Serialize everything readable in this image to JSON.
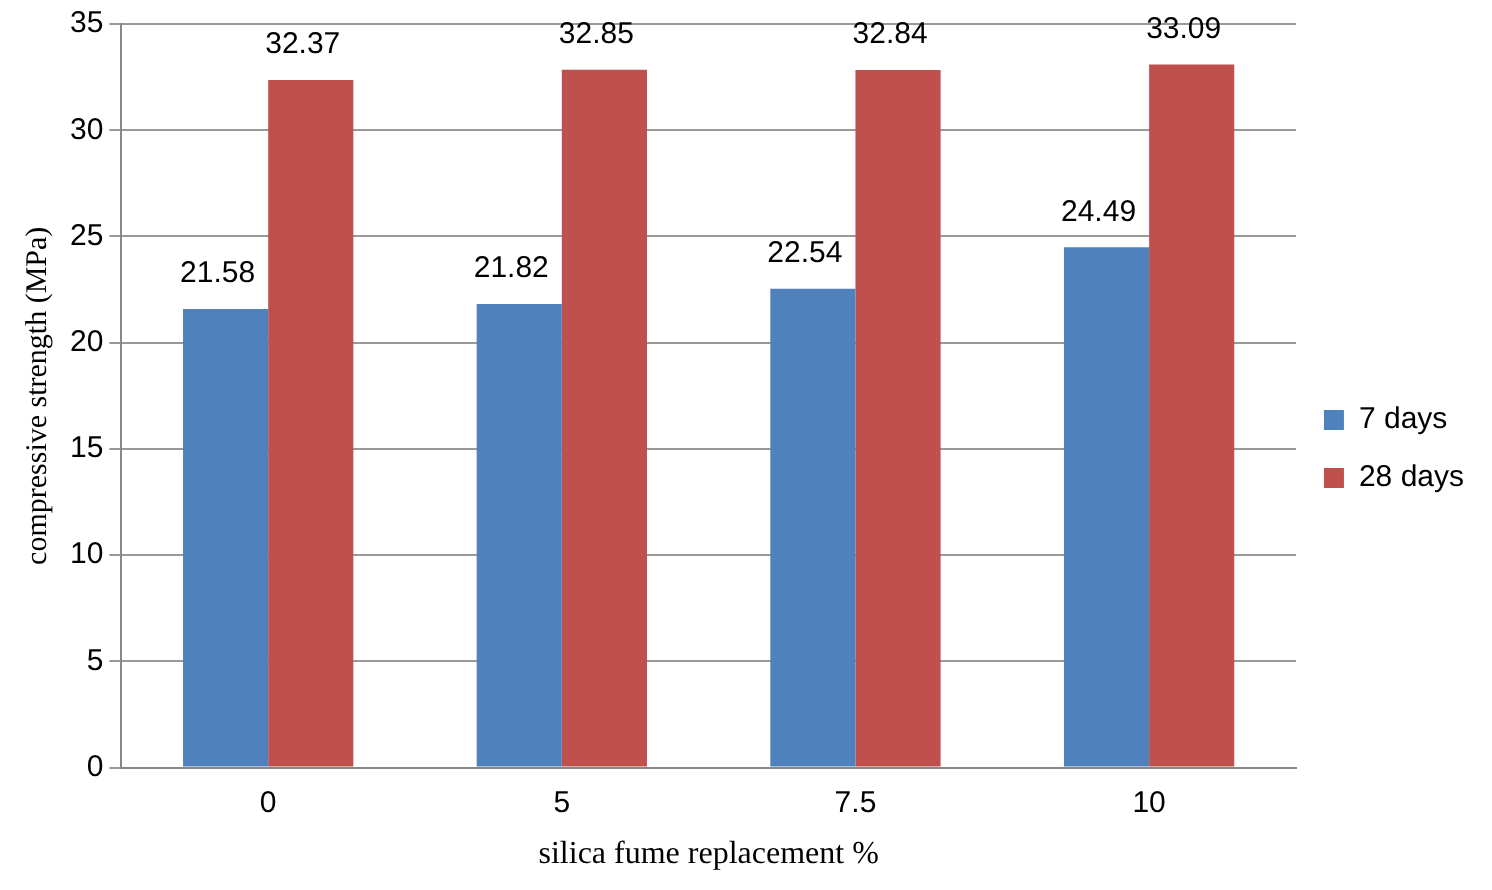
{
  "chart_data": {
    "type": "bar",
    "xlabel": "silica fume replacement %",
    "ylabel": "compressive strength (MPa)",
    "categories": [
      "0",
      "5",
      "7.5",
      "10"
    ],
    "series": [
      {
        "name": "7 days",
        "color": "#4f81bd",
        "values": [
          21.58,
          21.82,
          22.54,
          24.49
        ]
      },
      {
        "name": "28 days",
        "color": "#c0504d",
        "values": [
          32.37,
          32.85,
          32.84,
          33.09
        ]
      }
    ],
    "ylim": [
      0,
      35
    ],
    "yticks": [
      0,
      5,
      10,
      15,
      20,
      25,
      30,
      35
    ],
    "grid": "y",
    "legend": "right",
    "data_labels": true
  }
}
